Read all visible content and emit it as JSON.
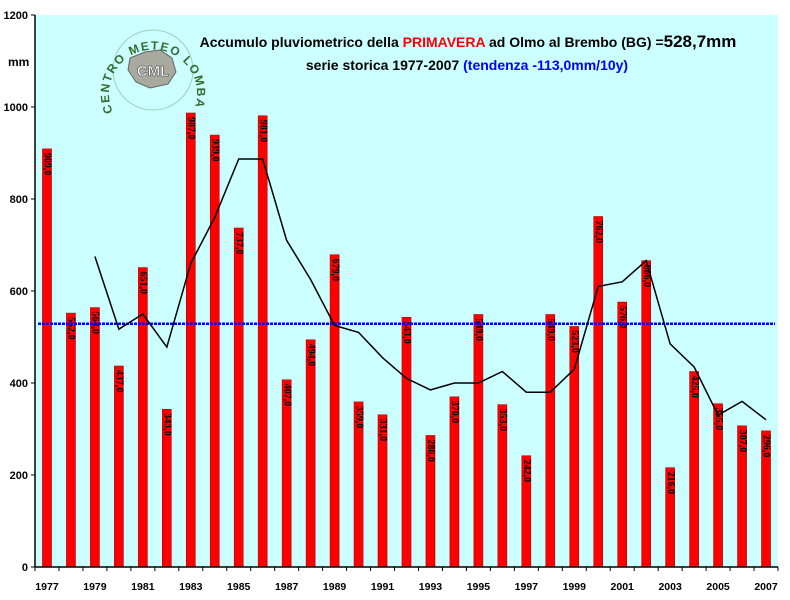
{
  "chart_data": {
    "type": "bar",
    "title_parts": {
      "prefix": "Accumulo pluviometrico della ",
      "season": "PRIMAVERA",
      "middle": " ad Olmo al Brembo (BG) =",
      "mean": "528,7mm"
    },
    "subtitle_parts": {
      "series": "serie storica 1977-2007 ",
      "trend": "(tendenza -113,0mm/10y)"
    },
    "ylabel": "mm",
    "ylim": [
      0,
      1200
    ],
    "yticks": [
      0,
      200,
      400,
      600,
      800,
      1000,
      1200
    ],
    "xtick_labels": [
      "1977",
      "1979",
      "1981",
      "1983",
      "1985",
      "1987",
      "1989",
      "1991",
      "1993",
      "1995",
      "1997",
      "1999",
      "2001",
      "2003",
      "2005",
      "2007"
    ],
    "categories": [
      1977,
      1978,
      1979,
      1980,
      1981,
      1982,
      1983,
      1984,
      1985,
      1986,
      1987,
      1988,
      1989,
      1990,
      1991,
      1992,
      1993,
      1994,
      1995,
      1996,
      1997,
      1998,
      1999,
      2000,
      2001,
      2002,
      2003,
      2004,
      2005,
      2006,
      2007
    ],
    "series": [
      {
        "values": [
          909,
          552,
          564,
          437,
          651,
          343,
          987,
          939,
          737,
          981,
          407,
          494,
          679,
          359,
          331,
          543,
          286,
          370,
          549,
          353,
          242,
          549,
          523,
          762,
          576,
          666,
          216,
          425,
          355,
          307,
          296
        ]
      }
    ],
    "data_labels": [
      "909,0",
      "552,0",
      "564,0",
      "437,0",
      "651,0",
      "343,0",
      "987,0",
      "939,0",
      "737,0",
      "981,0",
      "407,0",
      "494,0",
      "679,0",
      "359,0",
      "331,0",
      "543,0",
      "286,0",
      "370,0",
      "549,0",
      "353,0",
      "242,0",
      "549,0",
      "523,0",
      "762,0",
      "576,0",
      "666,0",
      "216,0",
      "425,0",
      "355,0",
      "307,0",
      "296,0"
    ],
    "moving_average": {
      "x": [
        1979,
        1980,
        1981,
        1982,
        1983,
        1984,
        1985,
        1986,
        1987,
        1988,
        1989,
        1990,
        1991,
        1992,
        1993,
        1994,
        1995,
        1996,
        1997,
        1998,
        1999,
        2000,
        2001,
        2002,
        2003,
        2004,
        2005,
        2006,
        2007
      ],
      "values": [
        675,
        517,
        550,
        478,
        660,
        760,
        887,
        887,
        710,
        625,
        525,
        510,
        455,
        410,
        385,
        400,
        400,
        425,
        380,
        380,
        430,
        610,
        620,
        666,
        485,
        435,
        330,
        360,
        320
      ]
    },
    "mean_line": 528.7,
    "colors": {
      "bars": "#ff0000",
      "plot_bg": "#ccffff",
      "mean": "#0000ff",
      "ma": "#000000",
      "title_accent": "#ff0000",
      "trend": "#0000ff"
    },
    "grid": false
  },
  "logo": {
    "text_top": "CENTRO METEO LOMBARDO",
    "abbr": "CML"
  }
}
